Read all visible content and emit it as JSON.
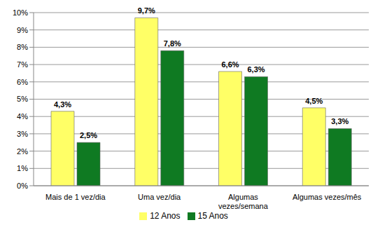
{
  "chart_data": {
    "type": "bar",
    "categories": [
      "Mais de 1 vez/dia",
      "Uma vez/dia",
      "Algumas vezes/semana",
      "Algumas vezes/mês"
    ],
    "series": [
      {
        "name": "12 Anos",
        "color": "#ffff66",
        "values": [
          4.3,
          9.7,
          6.6,
          4.5
        ],
        "value_labels": [
          "4,3%",
          "9,7%",
          "6,6%",
          "4,5%"
        ]
      },
      {
        "name": "15 Anos",
        "color": "#0f7a22",
        "values": [
          2.5,
          7.8,
          6.3,
          3.3
        ],
        "value_labels": [
          "2,5%",
          "7,8%",
          "6,3%",
          "3,3%"
        ]
      }
    ],
    "ylim": [
      0,
      10
    ],
    "yticks": [
      {
        "value": 0,
        "label": "0%"
      },
      {
        "value": 1,
        "label": "1%"
      },
      {
        "value": 2,
        "label": "2%"
      },
      {
        "value": 3,
        "label": "3%"
      },
      {
        "value": 4,
        "label": "4%"
      },
      {
        "value": 5,
        "label": "5%"
      },
      {
        "value": 6,
        "label": "6%"
      },
      {
        "value": 7,
        "label": "7%"
      },
      {
        "value": 8,
        "label": "8%"
      },
      {
        "value": 9,
        "label": "9%"
      },
      {
        "value": 10,
        "label": "10%"
      }
    ],
    "grid": true,
    "legend": "bottom",
    "data_labels": true
  }
}
